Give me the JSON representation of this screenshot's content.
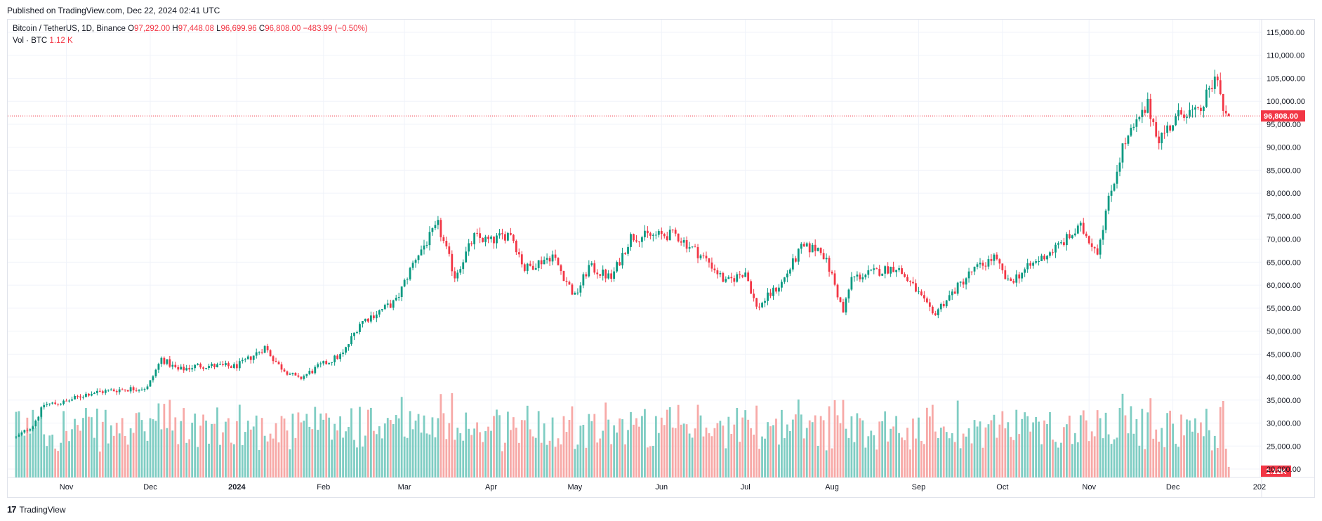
{
  "header": {
    "published": "Published on TradingView.com, Dec 22, 2024 02:41 UTC"
  },
  "legend": {
    "symbol": "Bitcoin / TetherUS, 1D, Binance",
    "o_label": "O",
    "o_value": "97,292.00",
    "h_label": "H",
    "h_value": "97,448.08",
    "l_label": "L",
    "l_value": "96,699.96",
    "c_label": "C",
    "c_value": "96,808.00",
    "change": "−483.99 (−0.50%)",
    "vol_label": "Vol · BTC",
    "vol_value": "1.12 K"
  },
  "footer": {
    "brand": "TradingView",
    "logo": "17"
  },
  "colors": {
    "up": "#089981",
    "down": "#f23645",
    "up_vol": "#7fcdc3",
    "down_vol": "#f7a9a7",
    "grid": "#f0f3fa"
  },
  "chart_data": {
    "type": "candlestick",
    "y_axis": {
      "ticks": [
        "115,000.00",
        "110,000.00",
        "105,000.00",
        "100,000.00",
        "95,000.00",
        "90,000.00",
        "85,000.00",
        "80,000.00",
        "75,000.00",
        "70,000.00",
        "65,000.00",
        "60,000.00",
        "55,000.00",
        "50,000.00",
        "45,000.00",
        "40,000.00",
        "35,000.00",
        "30,000.00",
        "25,000.00",
        "20,000.00"
      ],
      "min": 20000,
      "max": 115000
    },
    "x_axis": {
      "ticks": [
        "Nov",
        "Dec",
        "2024",
        "Feb",
        "Mar",
        "Apr",
        "May",
        "Jun",
        "Jul",
        "Aug",
        "Sep",
        "Oct",
        "Nov",
        "Dec",
        "202"
      ]
    },
    "last_price": {
      "value": 96808,
      "label": "96,808.00"
    },
    "last_volume_label": "1.12K",
    "price_path": [
      [
        "2023-10-14",
        26900
      ],
      [
        "2023-10-20",
        29500
      ],
      [
        "2023-10-24",
        34000
      ],
      [
        "2023-10-31",
        34500
      ],
      [
        "2023-11-09",
        36500
      ],
      [
        "2023-11-20",
        37300
      ],
      [
        "2023-11-30",
        37700
      ],
      [
        "2023-12-05",
        44000
      ],
      [
        "2023-12-11",
        41500
      ],
      [
        "2023-12-18",
        42500
      ],
      [
        "2023-12-31",
        42300
      ],
      [
        "2024-01-03",
        43000
      ],
      [
        "2024-01-11",
        46500
      ],
      [
        "2024-01-16",
        42500
      ],
      [
        "2024-01-23",
        39500
      ],
      [
        "2024-01-31",
        42500
      ],
      [
        "2024-02-08",
        45000
      ],
      [
        "2024-02-14",
        51800
      ],
      [
        "2024-02-27",
        56500
      ],
      [
        "2024-03-05",
        66000
      ],
      [
        "2024-03-13",
        73000
      ],
      [
        "2024-03-19",
        62000
      ],
      [
        "2024-03-26",
        70500
      ],
      [
        "2024-04-01",
        69500
      ],
      [
        "2024-04-08",
        71500
      ],
      [
        "2024-04-13",
        63500
      ],
      [
        "2024-04-23",
        66500
      ],
      [
        "2024-05-01",
        57500
      ],
      [
        "2024-05-06",
        64000
      ],
      [
        "2024-05-14",
        61500
      ],
      [
        "2024-05-21",
        70500
      ],
      [
        "2024-06-06",
        71000
      ],
      [
        "2024-06-18",
        65000
      ],
      [
        "2024-06-24",
        60500
      ],
      [
        "2024-07-01",
        63000
      ],
      [
        "2024-07-05",
        55000
      ],
      [
        "2024-07-14",
        60500
      ],
      [
        "2024-07-21",
        68000
      ],
      [
        "2024-07-28",
        68000
      ],
      [
        "2024-08-01",
        62000
      ],
      [
        "2024-08-05",
        54000
      ],
      [
        "2024-08-08",
        61500
      ],
      [
        "2024-08-24",
        64000
      ],
      [
        "2024-08-31",
        59000
      ],
      [
        "2024-09-06",
        53500
      ],
      [
        "2024-09-20",
        63000
      ],
      [
        "2024-09-28",
        66000
      ],
      [
        "2024-10-03",
        60500
      ],
      [
        "2024-10-14",
        65500
      ],
      [
        "2024-10-21",
        68500
      ],
      [
        "2024-10-29",
        72500
      ],
      [
        "2024-11-04",
        67500
      ],
      [
        "2024-11-07",
        76000
      ],
      [
        "2024-11-13",
        90000
      ],
      [
        "2024-11-22",
        99000
      ],
      [
        "2024-11-26",
        92000
      ],
      [
        "2024-12-05",
        98000
      ],
      [
        "2024-12-10",
        97000
      ],
      [
        "2024-12-17",
        106000
      ],
      [
        "2024-12-19",
        97500
      ],
      [
        "2024-12-21",
        96808
      ]
    ],
    "series": [
      {
        "name": "Vol · BTC",
        "values_label": "1.12 K"
      }
    ]
  }
}
